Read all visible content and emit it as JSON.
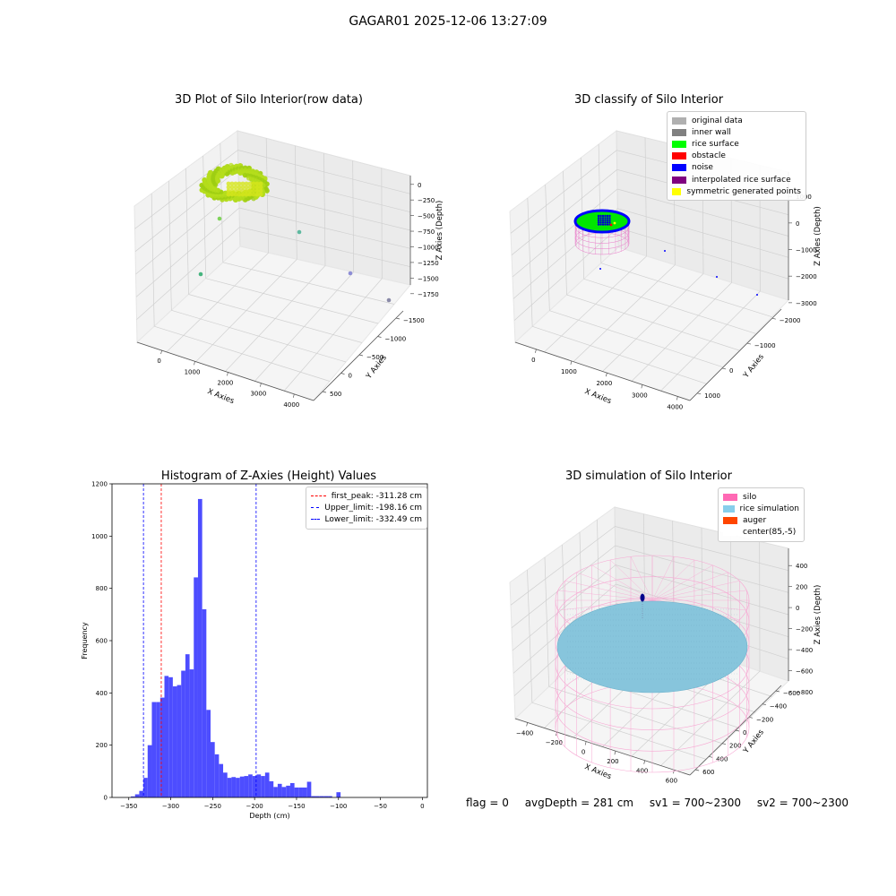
{
  "suptitle": "GAGAR01 2025-12-06 13:27:09",
  "status": {
    "flag": "flag = 0",
    "avg": "avgDepth = 281 cm",
    "sv1": "sv1 = 700~2300",
    "sv2": "sv2 = 700~2300"
  },
  "chart_data": [
    {
      "type": "scatter",
      "title": "3D Plot of Silo Interior(row data)",
      "xlabel": "X Axies",
      "ylabel": "Y Axies",
      "zlabel": "Z Axies (Depth)",
      "x_ticks": [
        "0",
        "1000",
        "2000",
        "3000",
        "4000"
      ],
      "y_ticks": [
        "−1500",
        "−1000",
        "−500",
        "0",
        "500"
      ],
      "z_ticks": [
        "0",
        "−250",
        "−500",
        "−750",
        "−1000",
        "−1250",
        "−1500",
        "−1750"
      ],
      "grid": true,
      "colors": {
        "cloud": "#b6dd1c",
        "cloud_dark": "#9ccc12"
      },
      "outliers": [
        {
          "x": 900,
          "y": -200,
          "z": -200,
          "color": "#7fd35a"
        },
        {
          "x": 2100,
          "y": -250,
          "z": -900,
          "color": "#5fb9a0"
        },
        {
          "x": 700,
          "y": -1400,
          "z": -1000,
          "color": "#45b47e"
        },
        {
          "x": 3600,
          "y": -300,
          "z": -1250,
          "color": "#8e8ed6"
        },
        {
          "x": 4100,
          "y": -400,
          "z": -1700,
          "color": "#8a8aa8"
        }
      ]
    },
    {
      "type": "scatter",
      "title": "3D classify of Silo Interior",
      "xlabel": "X Axies",
      "ylabel": "Y Axies",
      "zlabel": "Z Axies (Depth)",
      "x_ticks": [
        "0",
        "1000",
        "2000",
        "3000",
        "4000"
      ],
      "y_ticks": [
        "−2000",
        "−1000",
        "0",
        "1000"
      ],
      "z_ticks": [
        "1000",
        "0",
        "−1000",
        "−2000",
        "−3000"
      ],
      "grid": true,
      "legend_position": "top-right",
      "legend": [
        {
          "label": "original data",
          "color": "#b0b0b0"
        },
        {
          "label": "inner wall",
          "color": "#808080"
        },
        {
          "label": "rice surface",
          "color": "#00ff00"
        },
        {
          "label": "obstacle",
          "color": "#ff0000"
        },
        {
          "label": "noise",
          "color": "#0000ff"
        },
        {
          "label": "interpolated rice surface",
          "color": "#800080"
        },
        {
          "label": "symmetric generated points",
          "color": "#ffff00"
        }
      ],
      "noise_points": [
        {
          "x": 300,
          "y": -1500,
          "z": -1000
        },
        {
          "x": 2200,
          "y": -300,
          "z": -1000
        },
        {
          "x": 3300,
          "y": -900,
          "z": -1800
        },
        {
          "x": 4100,
          "y": -700,
          "z": -2400
        }
      ]
    },
    {
      "type": "bar",
      "title": "Histogram of Z-Axies (Height) Values",
      "xlabel": "Depth (cm)",
      "ylabel": "Frequency",
      "xlim": [
        -370,
        6
      ],
      "ylim": [
        0,
        1200
      ],
      "x_ticks": [
        -350,
        -300,
        -250,
        -200,
        -150,
        -100,
        -50,
        0
      ],
      "y_ticks": [
        0,
        200,
        400,
        600,
        800,
        1000,
        1200
      ],
      "bin_width": 5,
      "bar_color": "#4d4dff",
      "bins": [
        {
          "x": -345,
          "v": 4
        },
        {
          "x": -340,
          "v": 12
        },
        {
          "x": -335,
          "v": 25
        },
        {
          "x": -330,
          "v": 75
        },
        {
          "x": -325,
          "v": 200
        },
        {
          "x": -320,
          "v": 365
        },
        {
          "x": -315,
          "v": 365
        },
        {
          "x": -310,
          "v": 382
        },
        {
          "x": -305,
          "v": 465
        },
        {
          "x": -300,
          "v": 460
        },
        {
          "x": -295,
          "v": 425
        },
        {
          "x": -290,
          "v": 430
        },
        {
          "x": -285,
          "v": 485
        },
        {
          "x": -280,
          "v": 548
        },
        {
          "x": -275,
          "v": 490
        },
        {
          "x": -270,
          "v": 842
        },
        {
          "x": -265,
          "v": 1142
        },
        {
          "x": -260,
          "v": 720
        },
        {
          "x": -255,
          "v": 335
        },
        {
          "x": -250,
          "v": 212
        },
        {
          "x": -245,
          "v": 165
        },
        {
          "x": -240,
          "v": 128
        },
        {
          "x": -235,
          "v": 95
        },
        {
          "x": -230,
          "v": 75
        },
        {
          "x": -225,
          "v": 78
        },
        {
          "x": -220,
          "v": 75
        },
        {
          "x": -215,
          "v": 80
        },
        {
          "x": -210,
          "v": 82
        },
        {
          "x": -205,
          "v": 88
        },
        {
          "x": -200,
          "v": 82
        },
        {
          "x": -195,
          "v": 88
        },
        {
          "x": -190,
          "v": 82
        },
        {
          "x": -185,
          "v": 95
        },
        {
          "x": -180,
          "v": 62
        },
        {
          "x": -175,
          "v": 40
        },
        {
          "x": -170,
          "v": 52
        },
        {
          "x": -165,
          "v": 40
        },
        {
          "x": -160,
          "v": 45
        },
        {
          "x": -155,
          "v": 55
        },
        {
          "x": -150,
          "v": 38
        },
        {
          "x": -145,
          "v": 38
        },
        {
          "x": -140,
          "v": 38
        },
        {
          "x": -135,
          "v": 60
        },
        {
          "x": -130,
          "v": 5
        },
        {
          "x": -125,
          "v": 5
        },
        {
          "x": -120,
          "v": 5
        },
        {
          "x": -115,
          "v": 5
        },
        {
          "x": -110,
          "v": 5
        },
        {
          "x": -100,
          "v": 20
        }
      ],
      "lines": [
        {
          "label": "first_peak: -311.28 cm",
          "x": -311.28,
          "color": "#ff0000"
        },
        {
          "label": "Upper_limit: -198.16 cm",
          "x": -198.16,
          "color": "#0000ff"
        },
        {
          "label": "Lower_limit: -332.49 cm",
          "x": -332.49,
          "color": "#0000ff"
        }
      ],
      "legend_position": "top-right"
    },
    {
      "type": "scatter",
      "title": "3D simulation of Silo Interior",
      "xlabel": "X Axies",
      "ylabel": "Y Axies",
      "zlabel": "Z Axies (Depth)",
      "x_ticks": [
        "−400",
        "−200",
        "0",
        "200",
        "400",
        "600"
      ],
      "y_ticks": [
        "−600",
        "−400",
        "−200",
        "0",
        "200",
        "400",
        "600"
      ],
      "z_ticks": [
        "400",
        "200",
        "0",
        "−200",
        "−400",
        "−600",
        "−800"
      ],
      "grid": true,
      "legend_position": "top-right",
      "legend": [
        {
          "label": "silo",
          "color": "#ff69b4"
        },
        {
          "label": "rice simulation",
          "color": "#87ceeb"
        },
        {
          "label": "auger",
          "color": "#ff4500"
        },
        {
          "label": "center(85,-5)",
          "color": "#ffffff"
        }
      ],
      "colors": {
        "silo_wire": "#f7a8d3",
        "rice": "#87c5dc",
        "rice_dot": "#5a8fb0",
        "auger": "#00008b"
      }
    }
  ]
}
